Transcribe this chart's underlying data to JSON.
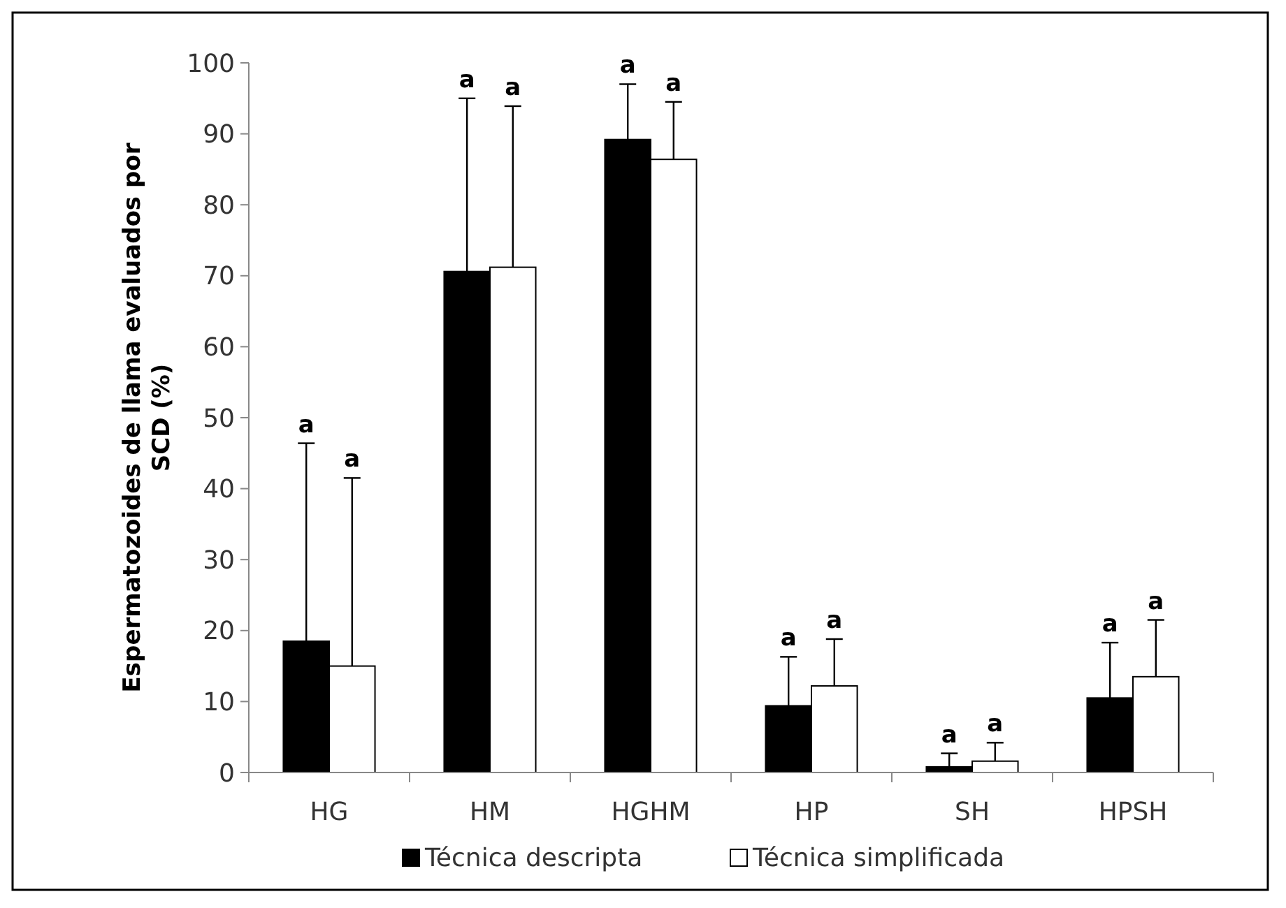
{
  "chart_data": {
    "type": "bar",
    "ylabel": "Espermatozoides de llama evaluados por SCD (%)",
    "categories": [
      "HG",
      "HM",
      "HGHM",
      "HP",
      "SH",
      "HPSH"
    ],
    "series": [
      {
        "name": "Técnica descripta",
        "color": "#000000",
        "values": [
          18.5,
          70.6,
          89.2,
          9.4,
          0.8,
          10.5
        ],
        "errors": [
          [
            18.5,
            46.4
          ],
          [
            70.6,
            95
          ],
          [
            89.2,
            97
          ],
          [
            9.4,
            16.3
          ],
          [
            0.8,
            2.7
          ],
          [
            10.5,
            18.3
          ]
        ]
      },
      {
        "name": "Técnica simplificada",
        "color": "#ffffff",
        "values": [
          15,
          71.2,
          86.4,
          12.2,
          1.6,
          13.5
        ],
        "errors": [
          [
            15,
            41.5
          ],
          [
            71.2,
            93.9
          ],
          [
            86.4,
            94.5
          ],
          [
            12.2,
            18.8
          ],
          [
            1.6,
            4.2
          ],
          [
            13.5,
            21.5
          ]
        ]
      }
    ],
    "annotations": [
      "a",
      "a",
      "a",
      "a",
      "a",
      "a",
      "a",
      "a",
      "a",
      "a",
      "a",
      "a"
    ],
    "ylim": [
      0,
      100
    ],
    "yticks": [
      0,
      10,
      20,
      30,
      40,
      50,
      60,
      70,
      80,
      90,
      100
    ],
    "grid": false,
    "legend": "bottom"
  }
}
